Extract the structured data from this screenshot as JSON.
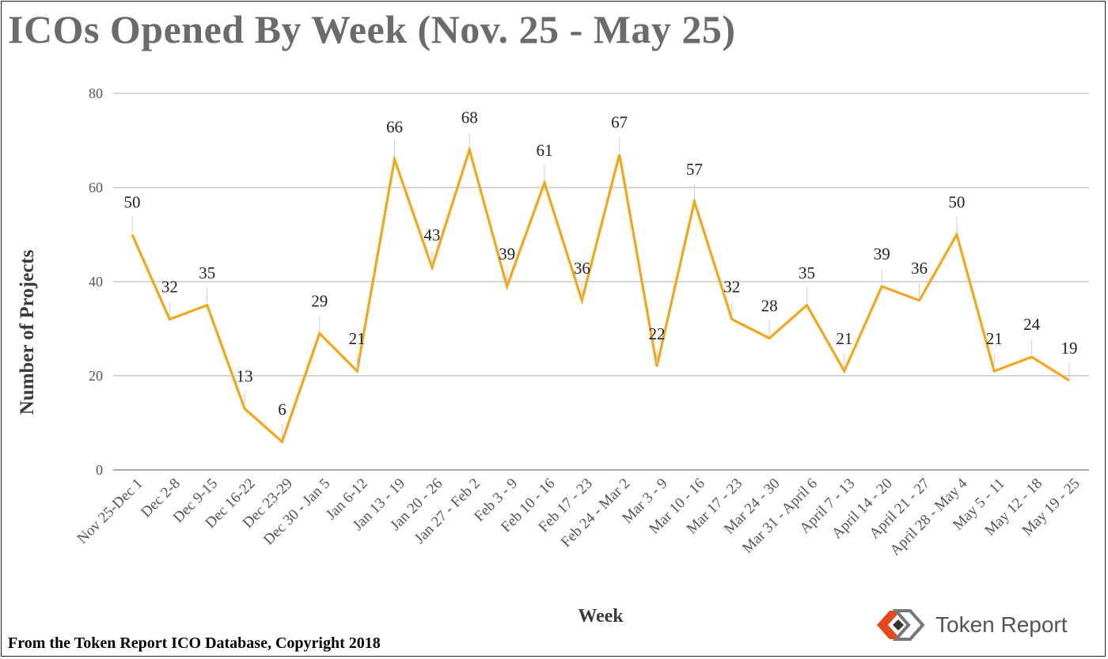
{
  "chart_data": {
    "type": "line",
    "title": "ICOs Opened By Week (Nov. 25 - May 25)",
    "xlabel": "Week",
    "ylabel": "Number of Projects",
    "ylim": [
      0,
      80
    ],
    "yticks": [
      0,
      20,
      40,
      60,
      80
    ],
    "grid": true,
    "line_color": "#F2A71B",
    "categories": [
      "Nov 25-Dec 1",
      "Dec 2-8",
      "Dec 9-15",
      "Dec 16-22",
      "Dec 23-29",
      "Dec 30 - Jan 5",
      "Jan 6-12",
      "Jan 13 - 19",
      "Jan 20 - 26",
      "Jan 27 - Feb 2",
      "Feb 3 - 9",
      "Feb 10 - 16",
      "Feb 17 - 23",
      "Feb 24 - Mar 2",
      "Mar 3 - 9",
      "Mar 10 - 16",
      "Mar 17 - 23",
      "Mar 24 - 30",
      "Mar 31 - April 6",
      "April 7 - 13",
      "April 14 - 20",
      "April 21 - 27",
      "April 28 - May 4",
      "May 5 - 11",
      "May 12 - 18",
      "May 19 - 25"
    ],
    "values": [
      50,
      32,
      35,
      13,
      6,
      29,
      21,
      66,
      43,
      68,
      39,
      61,
      36,
      67,
      22,
      57,
      32,
      28,
      35,
      21,
      39,
      36,
      50,
      21,
      24,
      19
    ]
  },
  "footer": "From the Token Report ICO Database, Copyright 2018",
  "brand": {
    "name": "Token Report",
    "logo_icon": "token-report-logo-icon",
    "logo_colors": [
      "#E8471C",
      "#777777"
    ]
  }
}
